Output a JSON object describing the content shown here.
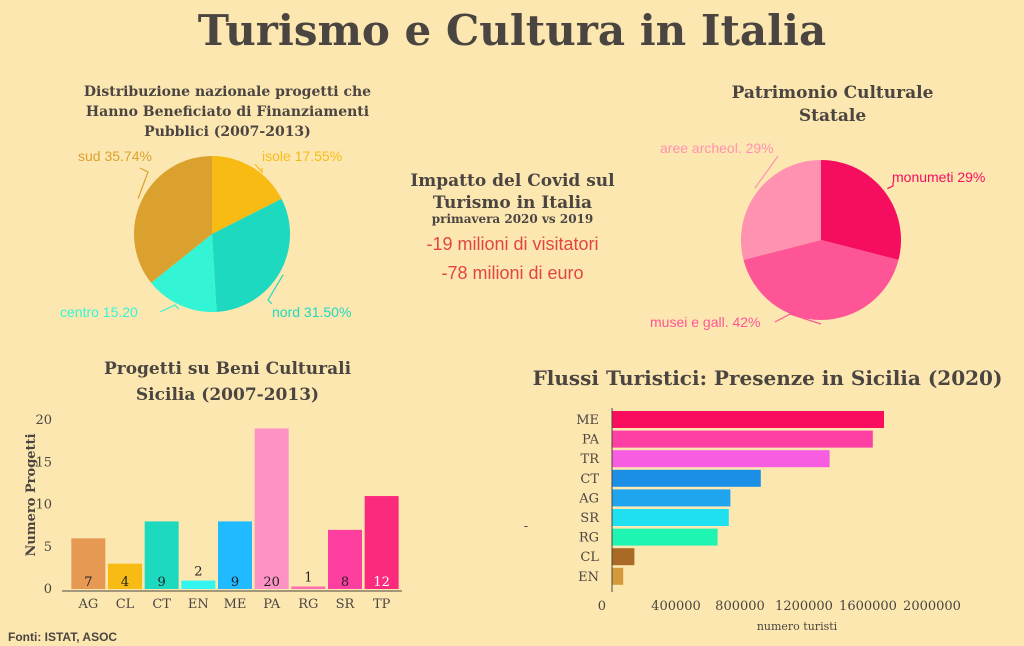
{
  "title": "Turismo e Cultura in Italia",
  "sources": "Fonti: ISTAT, ASOC",
  "covid": {
    "title": "Impatto del Covid sul Turismo in Italia",
    "subtitle": "primavera 2020 vs 2019",
    "stat1": "-19 milioni di visitatori",
    "stat2": "-78 milioni di euro",
    "stat_color": "#e2463e"
  },
  "chart_data": [
    {
      "type": "pie",
      "title": "Distribuzione nazionale progetti che Hanno Beneficiato di Finanziamenti Pubblici (2007-2013)",
      "slices": [
        {
          "label": "isole 17.55%",
          "value": 17.55,
          "color": "#f7bb14"
        },
        {
          "label": "nord 31.50%",
          "value": 31.5,
          "color": "#1dd9bf"
        },
        {
          "label": "centro 15.20",
          "value": 15.2,
          "color": "#33f5d6"
        },
        {
          "label": "sud 35.74%",
          "value": 35.74,
          "color": "#dba12e"
        }
      ]
    },
    {
      "type": "pie",
      "title": "Patrimonio Culturale Statale",
      "slices": [
        {
          "label": "monumeti 29%",
          "value": 29,
          "color": "#f50d5f"
        },
        {
          "label": "musei e gall. 42%",
          "value": 42,
          "color": "#fe5596"
        },
        {
          "label": "aree archeol. 29%",
          "value": 29,
          "color": "#ff92b0"
        }
      ]
    },
    {
      "type": "bar",
      "title": "Progetti su Beni Culturali Sicilia (2007-2013)",
      "ylabel": "Numero Progetti",
      "xlabel": "",
      "ylim": [
        0,
        20
      ],
      "yticks": [
        0,
        5,
        10,
        15,
        20
      ],
      "categories": [
        "AG",
        "CL",
        "CT",
        "EN",
        "ME",
        "PA",
        "RG",
        "SR",
        "TP"
      ],
      "values": [
        7,
        4,
        9,
        2,
        9,
        20,
        1,
        8,
        12
      ],
      "plotted_heights": [
        6,
        3,
        8,
        1,
        8,
        19,
        0.3,
        7,
        11
      ],
      "colors": [
        "#e69952",
        "#f7bb14",
        "#1dd9bf",
        "#33f5f0",
        "#1fbaff",
        "#ff92c4",
        "#ff6fb0",
        "#fe3fa0",
        "#fb2a7d"
      ]
    },
    {
      "type": "bar",
      "orientation": "horizontal",
      "title": "Flussi Turistici: Presenze in Sicilia (2020)",
      "xlabel": "numero turisti",
      "ylabel": "-",
      "xticks": [
        0,
        400000,
        800000,
        1200000,
        1600000,
        2000000
      ],
      "xlim": [
        0,
        2000000
      ],
      "categories": [
        "ME",
        "PA",
        "TR",
        "CT",
        "AG",
        "SR",
        "RG",
        "CL",
        "EN"
      ],
      "values": [
        1700000,
        1630000,
        1360000,
        930000,
        740000,
        730000,
        660000,
        140000,
        70000
      ],
      "colors": [
        "#fa0d5f",
        "#fe3fa4",
        "#f75de0",
        "#1b8ee6",
        "#1fa4ee",
        "#1fe0f0",
        "#1ef5b3",
        "#a86a24",
        "#d49a3a"
      ]
    }
  ]
}
